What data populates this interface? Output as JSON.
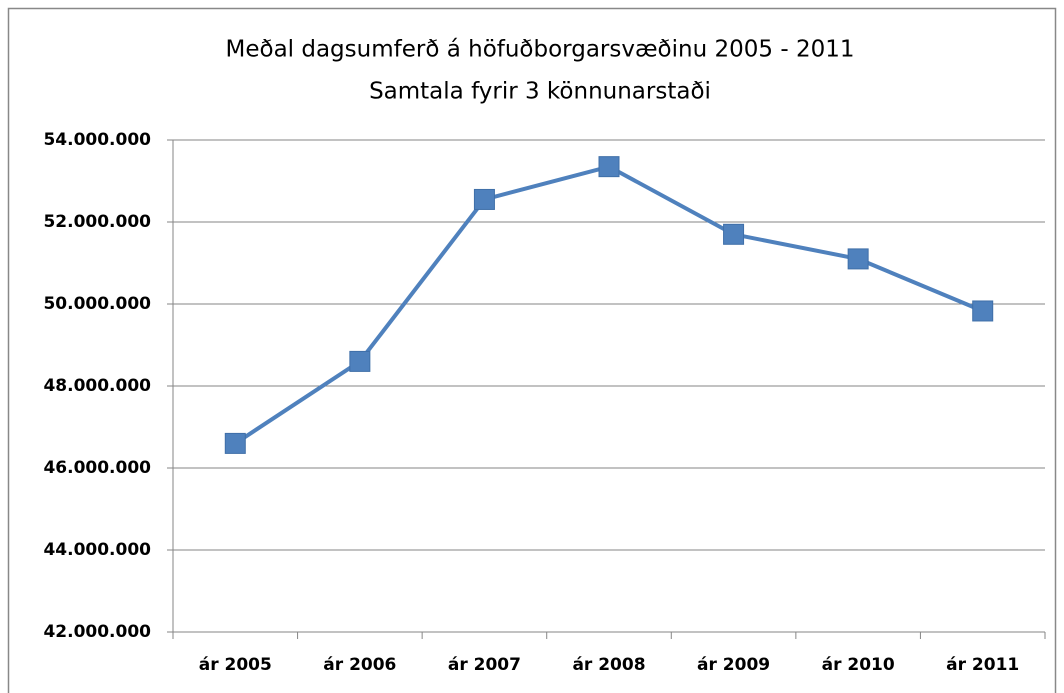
{
  "chart_data": {
    "type": "line",
    "title": "Meðal dagsumferð á höfuðborgarsvæðinu 2005 - 2011",
    "subtitle": "Samtala fyrir 3 könnunarstaði",
    "categories": [
      "ár 2005",
      "ár 2006",
      "ár 2007",
      "ár 2008",
      "ár 2009",
      "ár 2010",
      "ár 2011"
    ],
    "series": [
      {
        "name": "Samtala",
        "color": "#4f81bd",
        "values": [
          46600000,
          48600000,
          52550000,
          53350000,
          51700000,
          51100000,
          49830000
        ]
      }
    ],
    "ylim": [
      42000000,
      54000000
    ],
    "yticks": [
      {
        "value": 42000000,
        "label": "42.000.000"
      },
      {
        "value": 44000000,
        "label": "44.000.000"
      },
      {
        "value": 46000000,
        "label": "46.000.000"
      },
      {
        "value": 48000000,
        "label": "48.000.000"
      },
      {
        "value": 50000000,
        "label": "50.000.000"
      },
      {
        "value": 52000000,
        "label": "52.000.000"
      },
      {
        "value": 54000000,
        "label": "54.000.000"
      }
    ],
    "grid": true
  }
}
